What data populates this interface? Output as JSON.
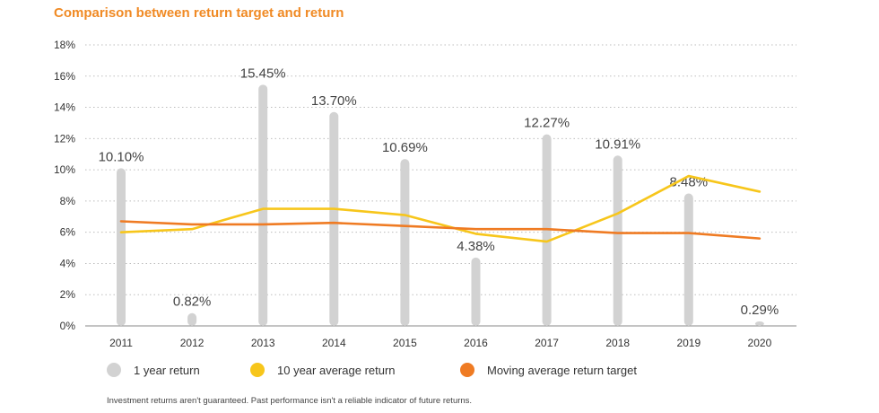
{
  "chart_data": {
    "type": "bar",
    "title": "Comparison between return target and return",
    "categories": [
      "2011",
      "2012",
      "2013",
      "2014",
      "2015",
      "2016",
      "2017",
      "2018",
      "2019",
      "2020"
    ],
    "series": [
      {
        "name": "1 year return",
        "type": "bar",
        "color": "#d2d2d2",
        "values": [
          10.1,
          0.82,
          15.45,
          13.7,
          10.69,
          4.38,
          12.27,
          10.91,
          8.48,
          0.29
        ],
        "labels": [
          "10.10%",
          "0.82%",
          "15.45%",
          "13.70%",
          "10.69%",
          "4.38%",
          "12.27%",
          "10.91%",
          "8.48%",
          "0.29%"
        ]
      },
      {
        "name": "10 year average return",
        "type": "line",
        "color": "#f7c61b",
        "values": [
          6.0,
          6.2,
          7.5,
          7.5,
          7.1,
          5.9,
          5.4,
          7.2,
          9.6,
          8.6
        ]
      },
      {
        "name": "Moving average return target",
        "type": "line",
        "color": "#ef7b23",
        "values": [
          6.7,
          6.5,
          6.5,
          6.6,
          6.4,
          6.2,
          6.2,
          5.95,
          5.95,
          5.6
        ]
      }
    ],
    "ylim": [
      0,
      18
    ],
    "yticks": [
      "0%",
      "2%",
      "4%",
      "6%",
      "8%",
      "10%",
      "12%",
      "14%",
      "16%",
      "18%"
    ],
    "grid": true,
    "legend": "bottom"
  },
  "footnote": "Investment returns aren't guaranteed. Past performance isn't a reliable indicator of future returns."
}
